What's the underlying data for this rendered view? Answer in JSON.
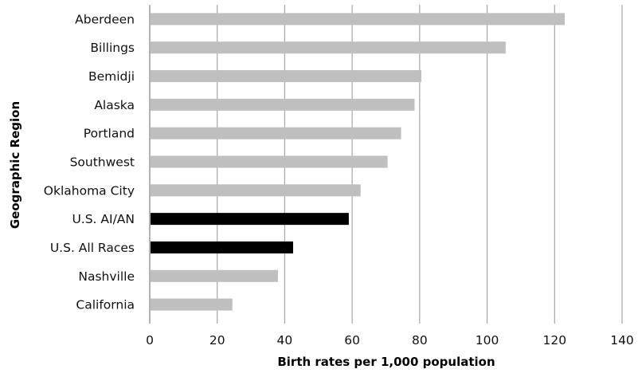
{
  "chart_data": {
    "type": "bar",
    "orientation": "horizontal",
    "categories": [
      "Aberdeen",
      "Billings",
      "Bemidji",
      "Alaska",
      "Portland",
      "Southwest",
      "Oklahoma City",
      "U.S. AI/AN",
      "U.S. All Races",
      "Nashville",
      "California"
    ],
    "values": [
      123,
      105.5,
      80.5,
      78.5,
      74.5,
      70.5,
      62.5,
      59,
      42.5,
      38,
      24.5
    ],
    "bar_colors": [
      "#bfbfbf",
      "#bfbfbf",
      "#bfbfbf",
      "#bfbfbf",
      "#bfbfbf",
      "#bfbfbf",
      "#bfbfbf",
      "#000000",
      "#000000",
      "#bfbfbf",
      "#bfbfbf"
    ],
    "xlabel": "Birth rates per 1,000 population",
    "ylabel": "Geographic Region",
    "xlim": [
      0,
      140
    ],
    "xticks": [
      0,
      20,
      40,
      60,
      80,
      100,
      120,
      140
    ],
    "grid": "vertical",
    "legend": "none"
  }
}
